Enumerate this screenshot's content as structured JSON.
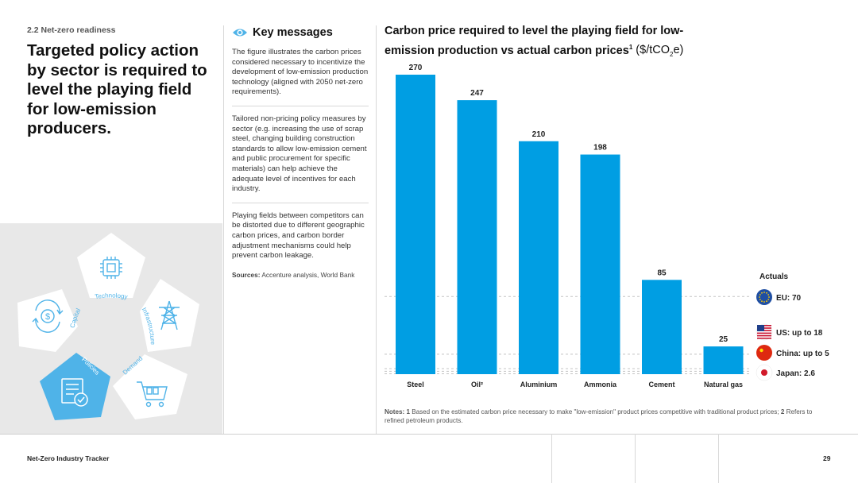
{
  "section": {
    "label": "2.2  Net-zero readiness"
  },
  "headline": "Targeted policy action by sector is required to level the playing field for low-emission producers.",
  "illustration": {
    "pillars": [
      {
        "label": "Technology",
        "icon": "chip-icon"
      },
      {
        "label": "Infrastructure",
        "icon": "power-pylon-icon"
      },
      {
        "label": "Demand",
        "icon": "shopping-cart-icon"
      },
      {
        "label": "Policies",
        "icon": "policy-document-icon",
        "highlighted": true
      },
      {
        "label": "Capital",
        "icon": "dollar-cycle-icon"
      }
    ],
    "accent": "#4fb3e8"
  },
  "key_messages": {
    "title": "Key messages",
    "icon": "eye-icon",
    "paragraphs": [
      "The figure illustrates the carbon prices considered necessary to incentivize the development of low-emission production technology (aligned with 2050 net-zero requirements).",
      "Tailored non-pricing policy measures by sector (e.g. increasing the use of scrap steel, changing building construction standards to allow low-emission cement and public procurement for specific materials) can help achieve the adequate level of incentives for each industry.",
      "Playing fields between competitors can be distorted due to different geographic carbon prices, and carbon border adjustment mechanisms could help prevent carbon leakage."
    ],
    "sources_label": "Sources:",
    "sources_text": "Accenture analysis, World Bank"
  },
  "chart_title": {
    "line1": "Carbon price required to level the playing field for low-",
    "line2": "emission production vs actual carbon prices",
    "sup": "1",
    "unit_prefix": "($/tCO",
    "unit_sub": "2",
    "unit_suffix": "e)"
  },
  "chart_data": {
    "type": "bar",
    "categories": [
      "Steel",
      "Oil²",
      "Aluminium",
      "Ammonia",
      "Cement",
      "Natural gas"
    ],
    "values": [
      270,
      247,
      210,
      198,
      85,
      25
    ],
    "ylim": [
      0,
      280
    ],
    "bar_color": "#009ee3",
    "reference_lines": [
      {
        "label": "EU: 70",
        "value": 70,
        "flag": "eu-flag-icon"
      },
      {
        "label": "US: up to 18",
        "value": 18,
        "flag": "us-flag-icon"
      },
      {
        "label": "China: up to 5",
        "value": 5,
        "flag": "china-flag-icon"
      },
      {
        "label": "Japan: 2.6",
        "value": 2.6,
        "flag": "japan-flag-icon"
      }
    ],
    "actuals_title": "Actuals"
  },
  "notes": {
    "label": "Notes:",
    "n1": "1",
    "t1": "Based on the estimated carbon price necessary to make \"low-emission\" product prices competitive with traditional product prices;",
    "n2": "2",
    "t2": "Refers to refined petroleum products."
  },
  "footer": {
    "title": "Net-Zero Industry Tracker",
    "page": "29"
  }
}
